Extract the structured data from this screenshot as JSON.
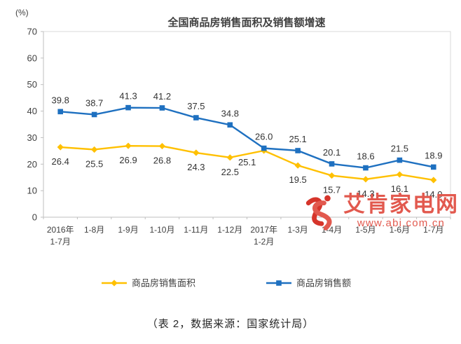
{
  "page": {
    "caption": "（表 2，数据来源：国家统计局）"
  },
  "chart_data": {
    "type": "line",
    "title": "全国商品房销售面积及销售额增速",
    "y_axis_unit": "(%)",
    "ylim": [
      0,
      70
    ],
    "y_ticks": [
      0,
      10,
      20,
      30,
      40,
      50,
      60,
      70
    ],
    "grid": false,
    "legend_position": "bottom",
    "categories": [
      [
        "2016年",
        "1-7月"
      ],
      [
        "1-8月"
      ],
      [
        "1-9月"
      ],
      [
        "1-10月"
      ],
      [
        "1-11月"
      ],
      [
        "1-12月"
      ],
      [
        "2017年",
        "1-2月"
      ],
      [
        "1-3月"
      ],
      [
        "1-4月"
      ],
      [
        "1-5月"
      ],
      [
        "1-6月"
      ],
      [
        "1-7月"
      ]
    ],
    "series": [
      {
        "name": "商品房销售面积",
        "color": "#FFC000",
        "marker": "diamond",
        "values": [
          26.4,
          25.5,
          26.9,
          26.8,
          24.3,
          22.5,
          25.1,
          19.5,
          15.7,
          14.3,
          16.1,
          14.0
        ]
      },
      {
        "name": "商品房销售额",
        "color": "#1E70C0",
        "marker": "square",
        "values": [
          39.8,
          38.7,
          41.3,
          41.2,
          37.5,
          34.8,
          26.0,
          25.1,
          20.1,
          18.6,
          21.5,
          18.9
        ]
      }
    ]
  },
  "watermark": {
    "site_name": "艾肯家电网",
    "site_url": "www.abi.com.cn",
    "text_color": "#E2594E",
    "logo_color": "#D6352B"
  }
}
